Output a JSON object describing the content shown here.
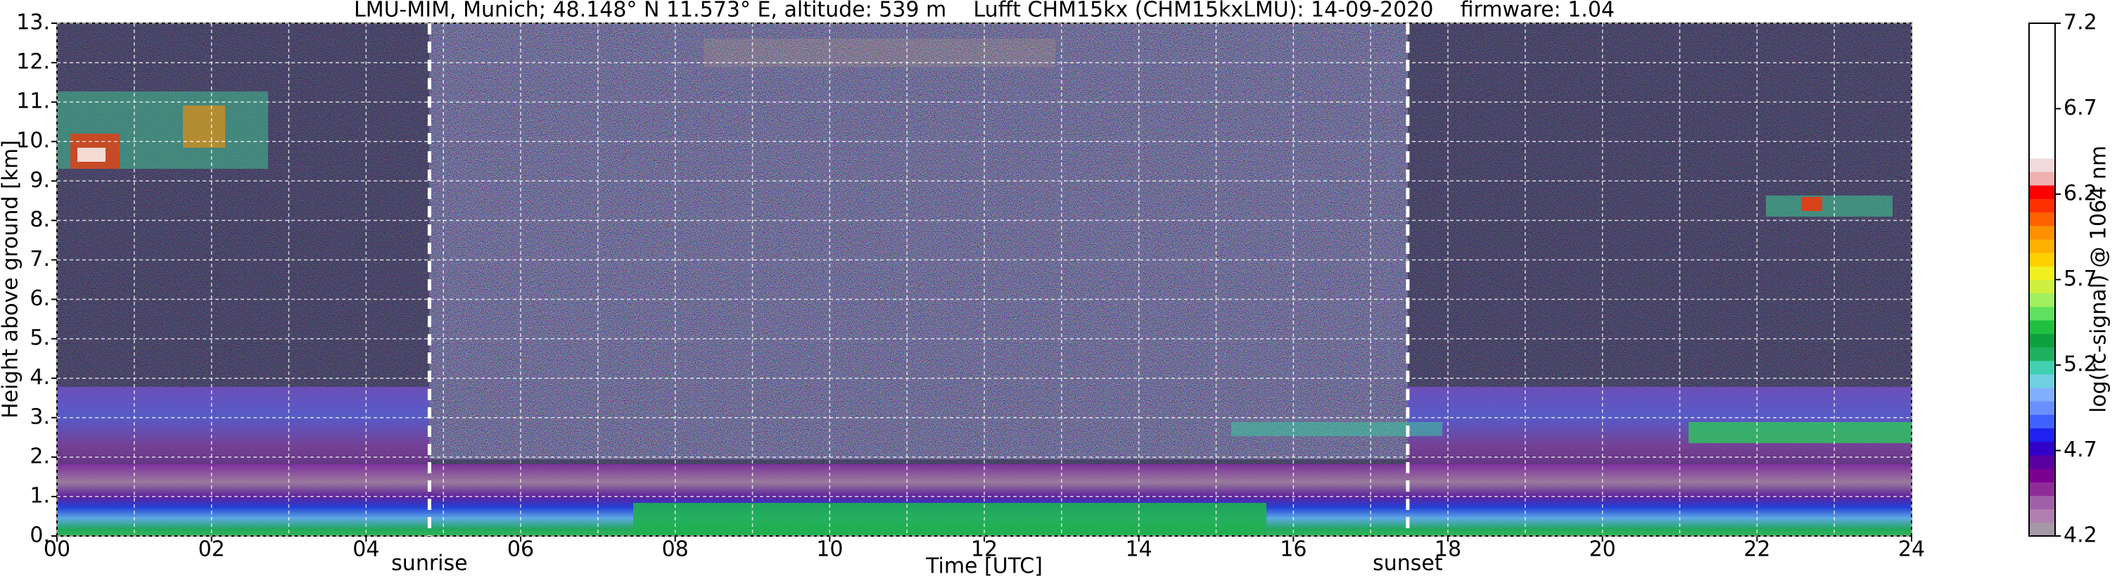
{
  "chart_data": {
    "type": "heatmap",
    "title": "LMU-MIM, Munich; 48.148° N 11.573° E, altitude: 539 m    Lufft CHM15kx (CHM15kxLMU): 14-09-2020    firmware: 1.04",
    "xlabel": "Time [UTC]",
    "ylabel": "Height above ground [km]",
    "xlim": [
      0,
      24
    ],
    "xticks": [
      {
        "value": 0,
        "label": "00"
      },
      {
        "value": 2,
        "label": "02"
      },
      {
        "value": 4,
        "label": "04"
      },
      {
        "value": 6,
        "label": "06"
      },
      {
        "value": 8,
        "label": "08"
      },
      10,
      12,
      14,
      16,
      18,
      20,
      22,
      24
    ],
    "xminorticks": [
      1,
      3,
      5,
      7,
      9,
      11,
      13,
      15,
      17,
      19,
      21,
      23
    ],
    "ylim": [
      0,
      13
    ],
    "yticks": [
      {
        "value": 0,
        "label": "0."
      },
      {
        "value": 1,
        "label": "1."
      },
      {
        "value": 2,
        "label": "2."
      },
      {
        "value": 3,
        "label": "3."
      },
      {
        "value": 4,
        "label": "4."
      },
      {
        "value": 5,
        "label": "5."
      },
      {
        "value": 6,
        "label": "6."
      },
      {
        "value": 7,
        "label": "7."
      },
      {
        "value": 8,
        "label": "8."
      },
      {
        "value": 9,
        "label": "9."
      },
      {
        "value": 10,
        "label": "10."
      },
      {
        "value": 11,
        "label": "11."
      },
      {
        "value": 12,
        "label": "12."
      },
      {
        "value": 13,
        "label": "13."
      }
    ],
    "grid": true,
    "annotations": [
      {
        "text": "sunrise",
        "x": 4.82
      },
      {
        "text": "sunset",
        "x": 17.48
      }
    ],
    "colorbar": {
      "label": "log(rc-signal) @ 1064 nm",
      "lim": [
        4.2,
        7.2
      ],
      "ticks": [
        4.2,
        4.7,
        5.2,
        5.7,
        6.2,
        6.7,
        7.2
      ],
      "colors": [
        "#a597a8",
        "#b07fb0",
        "#a060a8",
        "#902c98",
        "#7a0090",
        "#5a00a0",
        "#3000c8",
        "#2020f0",
        "#4060ff",
        "#6a90ff",
        "#80b0ff",
        "#70d0e0",
        "#40d0b0",
        "#20b060",
        "#10a040",
        "#20c040",
        "#60e060",
        "#a0f060",
        "#d0f040",
        "#f0f020",
        "#ffd000",
        "#ffb000",
        "#ff9000",
        "#ff6000",
        "#ff3000",
        "#ff0000",
        "#f0b0b0",
        "#f0dada",
        "#ffffff",
        "#ffffff",
        "#ffffff",
        "#ffffff",
        "#ffffff",
        "#ffffff",
        "#ffffff",
        "#ffffff",
        "#ffffff",
        "#ffffff"
      ]
    }
  }
}
